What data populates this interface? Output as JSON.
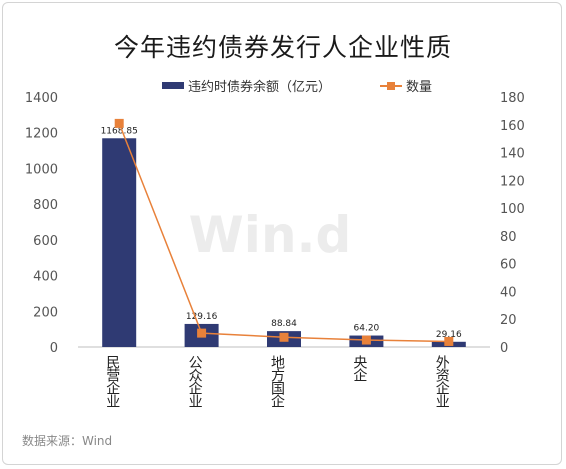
{
  "chart_data": {
    "type": "bar",
    "title": "今年违约债券发行人企业性质",
    "categories": [
      "民营企业",
      "公众企业",
      "地方国企",
      "央企",
      "外资企业"
    ],
    "series": [
      {
        "name": "违约时债券余额（亿元）",
        "type": "bar",
        "axis": "left",
        "color": "#2f3a73",
        "values": [
          1168.85,
          129.16,
          88.84,
          64.2,
          29.16
        ],
        "labels": [
          "1168.85",
          "129.16",
          "88.84",
          "64.20",
          "29.16"
        ]
      },
      {
        "name": "数量",
        "type": "line",
        "axis": "right",
        "color": "#e8813a",
        "values": [
          161,
          10,
          7,
          5,
          4
        ]
      }
    ],
    "y_left": {
      "range": [
        0,
        1400
      ],
      "ticks": [
        "0",
        "200",
        "400",
        "600",
        "800",
        "1000",
        "1200",
        "1400"
      ]
    },
    "y_right": {
      "range": [
        0,
        180
      ],
      "ticks": [
        "0",
        "20",
        "40",
        "60",
        "80",
        "100",
        "120",
        "140",
        "160",
        "180"
      ]
    },
    "grid": false,
    "legend": "top-center",
    "watermark": "Win.d",
    "source": "数据来源：Wind"
  }
}
